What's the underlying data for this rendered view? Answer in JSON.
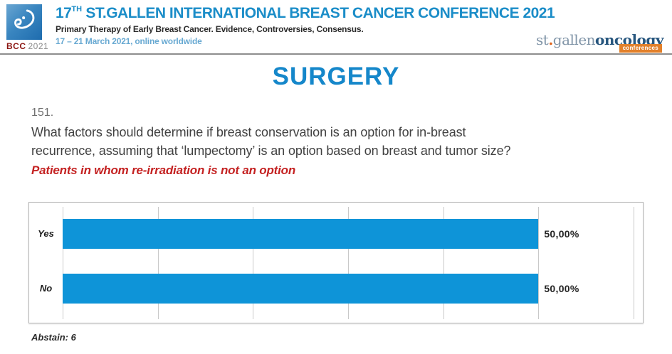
{
  "header": {
    "logo": {
      "acronym": "BCC",
      "year": "2021"
    },
    "title_num": "17",
    "title_sup": "TH",
    "title_rest": " ST.GALLEN INTERNATIONAL BREAST CANCER CONFERENCE 2021",
    "subtitle": "Primary Therapy of Early Breast Cancer. Evidence, Controversies, Consensus.",
    "dates": "17 – 21 March 2021, online worldwide",
    "brand": {
      "prefix": "st",
      "dot": ".",
      "middle": "gallen",
      "suffix": "oncology",
      "badge": "conferences"
    }
  },
  "section_title": "SURGERY",
  "question": {
    "number": "151.",
    "line1": "What factors should determine if breast conservation is an option for in-breast",
    "line2": "recurrence, assuming that ‘lumpectomy’ is an option based on breast and tumor size?",
    "note": "Patients in whom re-irradiation is not an option"
  },
  "chart_data": {
    "type": "bar",
    "orientation": "horizontal",
    "title": "",
    "categories": [
      "Yes",
      "No"
    ],
    "values": [
      50.0,
      50.0
    ],
    "value_labels": [
      "50,00%",
      "50,00%"
    ],
    "unit": "%",
    "xlim": [
      0,
      60
    ],
    "gridline_interval": 10,
    "grid": "vertical",
    "legend": "none",
    "bar_color": "#0e94d8",
    "abstain_note": "Abstain: 6"
  },
  "colors": {
    "accent_blue": "#1b8dc8",
    "bar_blue": "#0e94d8",
    "note_red": "#c42222",
    "dates_blue": "#68a9d2",
    "bcc_red": "#8c1713"
  }
}
